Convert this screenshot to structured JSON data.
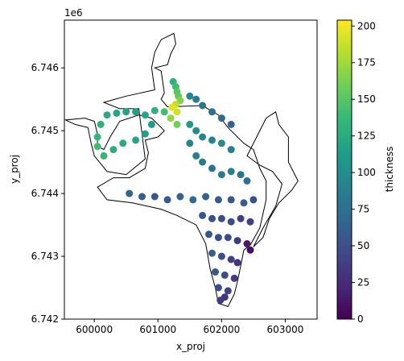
{
  "chart_data": {
    "type": "scatter",
    "title": "",
    "xlabel": "x_proj",
    "ylabel": "y_proj",
    "y_offset_label": "1e6",
    "xlim": [
      599530,
      603500
    ],
    "ylim": [
      6742000,
      6746760
    ],
    "x_ticks": [
      600000,
      601000,
      602000,
      603000
    ],
    "x_tick_labels": [
      "600000",
      "601000",
      "602000",
      "603000"
    ],
    "y_ticks": [
      6742000,
      6743000,
      6744000,
      6745000,
      6746000
    ],
    "y_tick_labels": [
      "6.742",
      "6.743",
      "6.744",
      "6.745",
      "6.746"
    ],
    "colorbar": {
      "label": "thickness",
      "colormap": "viridis",
      "range": [
        0,
        204
      ],
      "ticks": [
        0,
        25,
        50,
        75,
        100,
        125,
        150,
        175,
        200
      ],
      "tick_labels": [
        "0",
        "25",
        "50",
        "75",
        "100",
        "125",
        "150",
        "175",
        "200"
      ]
    },
    "outline": {
      "color": "#000000",
      "points": [
        [
          601250,
          6746550
        ],
        [
          601280,
          6746380
        ],
        [
          601200,
          6746220
        ],
        [
          601150,
          6746050
        ],
        [
          600950,
          6746000
        ],
        [
          601050,
          6745950
        ],
        [
          601100,
          6745600
        ],
        [
          601050,
          6745500
        ],
        [
          601150,
          6745380
        ],
        [
          601700,
          6745400
        ],
        [
          601950,
          6745250
        ],
        [
          602100,
          6745050
        ],
        [
          602350,
          6744800
        ],
        [
          602500,
          6744700
        ],
        [
          602600,
          6744400
        ],
        [
          602700,
          6744200
        ],
        [
          602700,
          6743900
        ],
        [
          602600,
          6743450
        ],
        [
          602450,
          6743180
        ],
        [
          602350,
          6743100
        ],
        [
          602300,
          6742850
        ],
        [
          602250,
          6742600
        ],
        [
          602200,
          6742400
        ],
        [
          602100,
          6742200
        ],
        [
          601950,
          6742250
        ],
        [
          601900,
          6742500
        ],
        [
          601820,
          6742800
        ],
        [
          601750,
          6743200
        ],
        [
          601600,
          6743500
        ],
        [
          601300,
          6743650
        ],
        [
          601050,
          6743750
        ],
        [
          600600,
          6743850
        ],
        [
          600200,
          6743900
        ],
        [
          600050,
          6744100
        ],
        [
          600300,
          6744250
        ],
        [
          600550,
          6744250
        ],
        [
          600800,
          6744400
        ],
        [
          600850,
          6744650
        ],
        [
          600800,
          6744850
        ],
        [
          601000,
          6744900
        ],
        [
          601100,
          6745000
        ],
        [
          600900,
          6745200
        ],
        [
          600700,
          6745250
        ],
        [
          600400,
          6745150
        ],
        [
          600250,
          6744900
        ],
        [
          600150,
          6744700
        ],
        [
          600050,
          6744750
        ],
        [
          600050,
          6744950
        ],
        [
          600000,
          6745150
        ],
        [
          599850,
          6745200
        ],
        [
          599550,
          6745170
        ],
        [
          599700,
          6745100
        ],
        [
          599900,
          6745050
        ],
        [
          599950,
          6744800
        ],
        [
          600000,
          6744600
        ],
        [
          600200,
          6744350
        ],
        [
          600500,
          6744300
        ],
        [
          600800,
          6744550
        ],
        [
          600700,
          6745350
        ],
        [
          600400,
          6745350
        ],
        [
          600150,
          6745450
        ],
        [
          600500,
          6745550
        ],
        [
          600950,
          6745650
        ],
        [
          600900,
          6746000
        ],
        [
          600950,
          6746250
        ],
        [
          601050,
          6746450
        ],
        [
          601250,
          6746550
        ]
      ]
    },
    "outline2": {
      "points": [
        [
          602400,
          6744600
        ],
        [
          602550,
          6744900
        ],
        [
          602700,
          6745200
        ],
        [
          602850,
          6745300
        ],
        [
          602900,
          6745100
        ],
        [
          603050,
          6744900
        ],
        [
          603050,
          6744500
        ],
        [
          603200,
          6744200
        ],
        [
          603100,
          6744050
        ],
        [
          602900,
          6743850
        ],
        [
          602750,
          6743600
        ],
        [
          602650,
          6743300
        ],
        [
          602500,
          6743150
        ],
        [
          602650,
          6743450
        ],
        [
          602850,
          6743800
        ],
        [
          602950,
          6744150
        ],
        [
          602800,
          6744350
        ],
        [
          602600,
          6744450
        ],
        [
          602400,
          6744600
        ]
      ]
    },
    "series": [
      {
        "values": [
          [
            601240,
            6745780,
            130
          ],
          [
            601280,
            6745700,
            140
          ],
          [
            601300,
            6745620,
            150
          ],
          [
            601320,
            6745550,
            155
          ],
          [
            601350,
            6745480,
            165
          ],
          [
            601280,
            6745420,
            185
          ],
          [
            601220,
            6745370,
            195
          ],
          [
            601300,
            6745300,
            190
          ],
          [
            601200,
            6745200,
            170
          ],
          [
            601300,
            6745100,
            160
          ],
          [
            601100,
            6745300,
            140
          ],
          [
            600950,
            6745320,
            130
          ],
          [
            600800,
            6745250,
            120
          ],
          [
            600650,
            6745300,
            115
          ],
          [
            600500,
            6745300,
            118
          ],
          [
            600350,
            6745280,
            120
          ],
          [
            600200,
            6745250,
            125
          ],
          [
            600100,
            6745100,
            130
          ],
          [
            600050,
            6744900,
            135
          ],
          [
            600050,
            6744750,
            140
          ],
          [
            600150,
            6744600,
            135
          ],
          [
            600300,
            6744700,
            128
          ],
          [
            600450,
            6744800,
            125
          ],
          [
            600650,
            6744850,
            120
          ],
          [
            600800,
            6744950,
            115
          ],
          [
            600900,
            6745100,
            112
          ],
          [
            601500,
            6745550,
            95
          ],
          [
            601600,
            6745500,
            85
          ],
          [
            601700,
            6745400,
            80
          ],
          [
            601850,
            6745300,
            75
          ],
          [
            602000,
            6745200,
            70
          ],
          [
            602150,
            6745100,
            65
          ],
          [
            601500,
            6745100,
            110
          ],
          [
            601600,
            6745000,
            100
          ],
          [
            601700,
            6744900,
            95
          ],
          [
            601850,
            6744850,
            90
          ],
          [
            602000,
            6744800,
            100
          ],
          [
            602150,
            6744700,
            90
          ],
          [
            601500,
            6744800,
            95
          ],
          [
            601600,
            6744600,
            90
          ],
          [
            601700,
            6744500,
            85
          ],
          [
            601850,
            6744400,
            80
          ],
          [
            602000,
            6744300,
            85
          ],
          [
            602150,
            6744350,
            90
          ],
          [
            602300,
            6744300,
            80
          ],
          [
            602400,
            6744200,
            75
          ],
          [
            600550,
            6744000,
            65
          ],
          [
            600750,
            6743950,
            60
          ],
          [
            600950,
            6743950,
            55
          ],
          [
            601150,
            6743900,
            58
          ],
          [
            601350,
            6743950,
            62
          ],
          [
            601550,
            6743900,
            70
          ],
          [
            601750,
            6743950,
            65
          ],
          [
            601950,
            6743900,
            60
          ],
          [
            602150,
            6743900,
            55
          ],
          [
            602350,
            6743850,
            60
          ],
          [
            602500,
            6743900,
            50
          ],
          [
            601700,
            6743650,
            55
          ],
          [
            601850,
            6743600,
            50
          ],
          [
            602000,
            6743600,
            45
          ],
          [
            602150,
            6743550,
            48
          ],
          [
            602300,
            6743600,
            40
          ],
          [
            602450,
            6743550,
            38
          ],
          [
            601800,
            6743350,
            55
          ],
          [
            601950,
            6743300,
            50
          ],
          [
            602100,
            6743300,
            45
          ],
          [
            602250,
            6743250,
            35
          ],
          [
            602400,
            6743200,
            15
          ],
          [
            602450,
            6743100,
            8
          ],
          [
            601850,
            6743050,
            60
          ],
          [
            602000,
            6743000,
            50
          ],
          [
            602150,
            6742950,
            40
          ],
          [
            602250,
            6742900,
            30
          ],
          [
            601900,
            6742750,
            55
          ],
          [
            602050,
            6742700,
            48
          ],
          [
            602200,
            6742650,
            35
          ],
          [
            601950,
            6742500,
            45
          ],
          [
            602100,
            6742450,
            40
          ],
          [
            602050,
            6742350,
            30
          ],
          [
            601980,
            6742300,
            35
          ]
        ]
      }
    ]
  }
}
